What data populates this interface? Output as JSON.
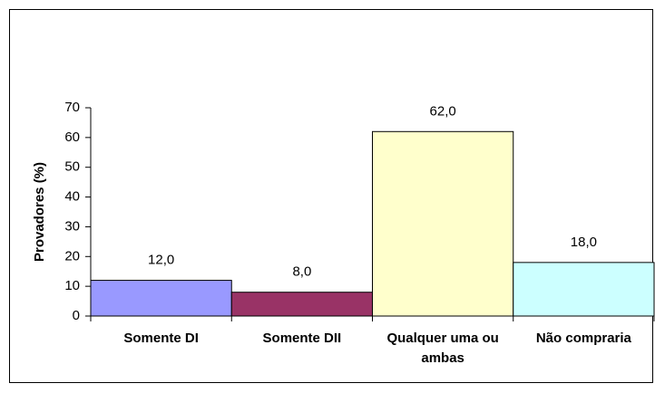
{
  "chart_data": {
    "type": "bar",
    "ylabel": "Provadores (%)",
    "categories": [
      "Somente DI",
      "Somente DII",
      "Qualquer uma ou ambas",
      "Não compraria"
    ],
    "values": [
      12,
      8,
      62,
      18
    ],
    "value_labels": [
      "12,0",
      "8,0",
      "62,0",
      "18,0"
    ],
    "colors": [
      "#9999ff",
      "#993366",
      "#ffffcc",
      "#ccffff"
    ],
    "ylim": [
      0,
      70
    ],
    "yticks": [
      0,
      10,
      20,
      30,
      40,
      50,
      60,
      70
    ],
    "grid": false
  }
}
